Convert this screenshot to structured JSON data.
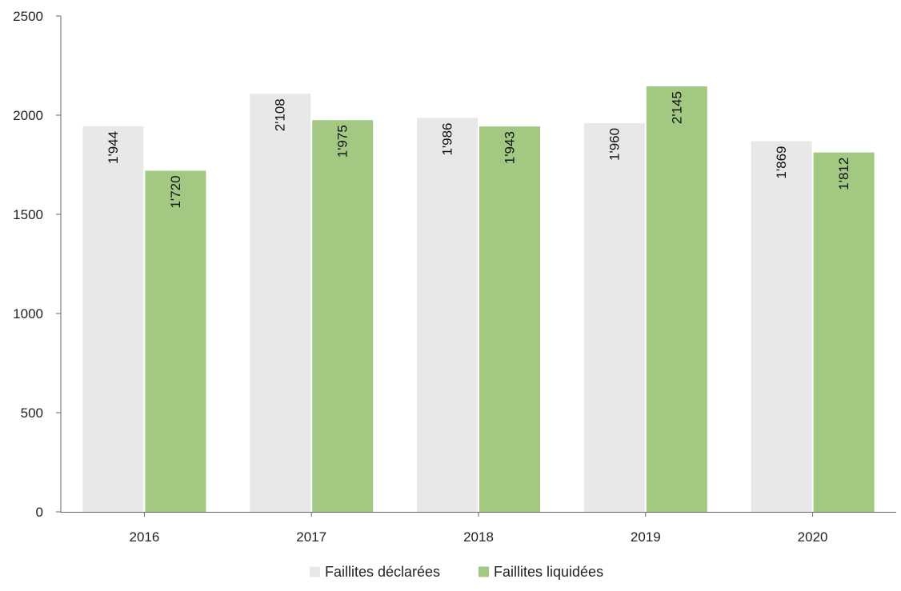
{
  "chart_data": {
    "type": "bar",
    "categories": [
      "2016",
      "2017",
      "2018",
      "2019",
      "2020"
    ],
    "series": [
      {
        "name": "Faillites déclarées",
        "values": [
          1944,
          2108,
          1986,
          1960,
          1869
        ],
        "labels": [
          "1'944",
          "2'108",
          "1'986",
          "1'960",
          "1'869"
        ],
        "color": "#e8e8e8"
      },
      {
        "name": "Faillites liquidées",
        "values": [
          1720,
          1975,
          1943,
          2145,
          1812
        ],
        "labels": [
          "1'720",
          "1'975",
          "1'943",
          "2'145",
          "1'812"
        ],
        "color": "#a3c882"
      }
    ],
    "y_ticks": [
      "0",
      "500",
      "1000",
      "1500",
      "2000",
      "2500"
    ],
    "ylim": [
      0,
      2500
    ],
    "grid": false,
    "legend_position": "bottom-center",
    "data_label_orientation": "vertical"
  }
}
